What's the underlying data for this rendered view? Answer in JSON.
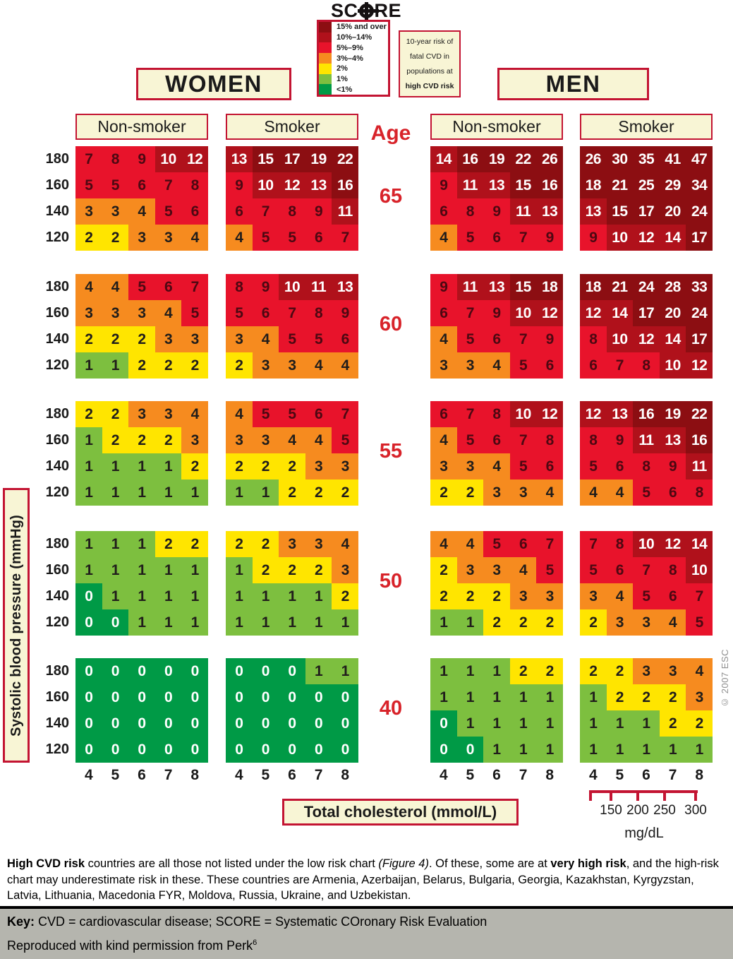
{
  "title": "SCORE",
  "title_parts": {
    "left": "SC",
    "right": "RE"
  },
  "legend_items": [
    {
      "label": "15% and over",
      "color": "#8c0e12"
    },
    {
      "label": "10%–14%",
      "color": "#b0111b"
    },
    {
      "label": "5%–9%",
      "color": "#e8132b"
    },
    {
      "label": "3%–4%",
      "color": "#f68b1f"
    },
    {
      "label": "2%",
      "color": "#ffe500"
    },
    {
      "label": "1%",
      "color": "#7dbf3f"
    },
    {
      "label": "<1%",
      "color": "#009a46"
    }
  ],
  "risk_box_lines": [
    "10-year risk of",
    "fatal CVD in",
    "populations at",
    "high CVD risk"
  ],
  "headers": {
    "women": "WOMEN",
    "men": "MEN",
    "age_label": "Age",
    "nonsmoker": "Non-smoker",
    "smoker": "Smoker"
  },
  "bp_axis_label": "Systolic blood pressure (mmHg)",
  "chol_box_label": "Total cholesterol (mmol/L)",
  "mgdl": {
    "ticks": [
      "150",
      "200",
      "250",
      "300"
    ],
    "unit": "mg/dL"
  },
  "copyright": "© 2007 ESC",
  "footnote_segments": [
    {
      "text": "High CVD risk",
      "bold": true
    },
    {
      "text": " countries are all those not listed under the low risk chart "
    },
    {
      "text": "(Figure 4)",
      "italic": true
    },
    {
      "text": ". Of these, some are at "
    },
    {
      "text": "very high risk",
      "bold": true
    },
    {
      "text": ", and the high-risk chart may underestimate risk in these. These countries are Armenia, Azerbaijan, Belarus, Bulgaria, Georgia, Kazakhstan, Kyrgyzstan, Latvia, Lithuania, Macedonia FYR, Moldova, Russia, Ukraine, and Uzbekistan."
    }
  ],
  "key_bar": {
    "key_label": "Key:",
    "key_text": " CVD = cardiovascular disease; SCORE = Systematic COronary Risk Evaluation",
    "reproduced_text": "Reproduced with kind permission from Perk",
    "reproduced_sup": "6"
  },
  "chart_data": {
    "type": "heatmap",
    "title": "SCORE",
    "subtitle": "10-year risk of fatal CVD in populations at high CVD risk",
    "legend_bins": [
      {
        "label": "15% and over",
        "min": 15,
        "color": "#8c0e12"
      },
      {
        "label": "10%–14%",
        "min": 10,
        "color": "#b0111b"
      },
      {
        "label": "5%–9%",
        "min": 5,
        "color": "#e8132b"
      },
      {
        "label": "3%–4%",
        "min": 3,
        "color": "#f68b1f"
      },
      {
        "label": "2%",
        "min": 2,
        "color": "#ffe500"
      },
      {
        "label": "1%",
        "min": 1,
        "color": "#7dbf3f"
      },
      {
        "label": "<1%",
        "min": 0,
        "color": "#009a46"
      }
    ],
    "x_axis": {
      "label": "Total cholesterol (mmol/L)",
      "ticks": [
        4,
        5,
        6,
        7,
        8
      ],
      "secondary": {
        "unit": "mg/dL",
        "ticks": [
          150,
          200,
          250,
          300
        ]
      }
    },
    "y_axis": {
      "label": "Systolic blood pressure (mmHg)",
      "ticks": [
        180,
        160,
        140,
        120
      ]
    },
    "ages": [
      65,
      60,
      55,
      50,
      40
    ],
    "grids": {
      "women": {
        "nonsmoker": {
          "65": [
            [
              7,
              8,
              9,
              10,
              12
            ],
            [
              5,
              5,
              6,
              7,
              8
            ],
            [
              3,
              3,
              4,
              5,
              6
            ],
            [
              2,
              2,
              3,
              3,
              4
            ]
          ],
          "60": [
            [
              4,
              4,
              5,
              6,
              7
            ],
            [
              3,
              3,
              3,
              4,
              5
            ],
            [
              2,
              2,
              2,
              3,
              3
            ],
            [
              1,
              1,
              2,
              2,
              2
            ]
          ],
          "55": [
            [
              2,
              2,
              3,
              3,
              4
            ],
            [
              1,
              2,
              2,
              2,
              3
            ],
            [
              1,
              1,
              1,
              1,
              2
            ],
            [
              1,
              1,
              1,
              1,
              1
            ]
          ],
          "50": [
            [
              1,
              1,
              1,
              2,
              2
            ],
            [
              1,
              1,
              1,
              1,
              1
            ],
            [
              0,
              1,
              1,
              1,
              1
            ],
            [
              0,
              0,
              1,
              1,
              1
            ]
          ],
          "40": [
            [
              0,
              0,
              0,
              0,
              0
            ],
            [
              0,
              0,
              0,
              0,
              0
            ],
            [
              0,
              0,
              0,
              0,
              0
            ],
            [
              0,
              0,
              0,
              0,
              0
            ]
          ]
        },
        "smoker": {
          "65": [
            [
              13,
              15,
              17,
              19,
              22
            ],
            [
              9,
              10,
              12,
              13,
              16
            ],
            [
              6,
              7,
              8,
              9,
              11
            ],
            [
              4,
              5,
              5,
              6,
              7
            ]
          ],
          "60": [
            [
              8,
              9,
              10,
              11,
              13
            ],
            [
              5,
              6,
              7,
              8,
              9
            ],
            [
              3,
              4,
              5,
              5,
              6
            ],
            [
              2,
              3,
              3,
              4,
              4
            ]
          ],
          "55": [
            [
              4,
              5,
              5,
              6,
              7
            ],
            [
              3,
              3,
              4,
              4,
              5
            ],
            [
              2,
              2,
              2,
              3,
              3
            ],
            [
              1,
              1,
              2,
              2,
              2
            ]
          ],
          "50": [
            [
              2,
              2,
              3,
              3,
              4
            ],
            [
              1,
              2,
              2,
              2,
              3
            ],
            [
              1,
              1,
              1,
              1,
              2
            ],
            [
              1,
              1,
              1,
              1,
              1
            ]
          ],
          "40": [
            [
              0,
              0,
              0,
              1,
              1
            ],
            [
              0,
              0,
              0,
              0,
              0
            ],
            [
              0,
              0,
              0,
              0,
              0
            ],
            [
              0,
              0,
              0,
              0,
              0
            ]
          ]
        }
      },
      "men": {
        "nonsmoker": {
          "65": [
            [
              14,
              16,
              19,
              22,
              26
            ],
            [
              9,
              11,
              13,
              15,
              16
            ],
            [
              6,
              8,
              9,
              11,
              13
            ],
            [
              4,
              5,
              6,
              7,
              9
            ]
          ],
          "60": [
            [
              9,
              11,
              13,
              15,
              18
            ],
            [
              6,
              7,
              9,
              10,
              12
            ],
            [
              4,
              5,
              6,
              7,
              9
            ],
            [
              3,
              3,
              4,
              5,
              6
            ]
          ],
          "55": [
            [
              6,
              7,
              8,
              10,
              12
            ],
            [
              4,
              5,
              6,
              7,
              8
            ],
            [
              3,
              3,
              4,
              5,
              6
            ],
            [
              2,
              2,
              3,
              3,
              4
            ]
          ],
          "50": [
            [
              4,
              4,
              5,
              6,
              7
            ],
            [
              2,
              3,
              3,
              4,
              5
            ],
            [
              2,
              2,
              2,
              3,
              3
            ],
            [
              1,
              1,
              2,
              2,
              2
            ]
          ],
          "40": [
            [
              1,
              1,
              1,
              2,
              2
            ],
            [
              1,
              1,
              1,
              1,
              1
            ],
            [
              0,
              1,
              1,
              1,
              1
            ],
            [
              0,
              0,
              1,
              1,
              1
            ]
          ]
        },
        "smoker": {
          "65": [
            [
              26,
              30,
              35,
              41,
              47
            ],
            [
              18,
              21,
              25,
              29,
              34
            ],
            [
              13,
              15,
              17,
              20,
              24
            ],
            [
              9,
              10,
              12,
              14,
              17
            ]
          ],
          "60": [
            [
              18,
              21,
              24,
              28,
              33
            ],
            [
              12,
              14,
              17,
              20,
              24
            ],
            [
              8,
              10,
              12,
              14,
              17
            ],
            [
              6,
              7,
              8,
              10,
              12
            ]
          ],
          "55": [
            [
              12,
              13,
              16,
              19,
              22
            ],
            [
              8,
              9,
              11,
              13,
              16
            ],
            [
              5,
              6,
              8,
              9,
              11
            ],
            [
              4,
              4,
              5,
              6,
              8
            ]
          ],
          "50": [
            [
              7,
              8,
              10,
              12,
              14
            ],
            [
              5,
              6,
              7,
              8,
              10
            ],
            [
              3,
              4,
              5,
              6,
              7
            ],
            [
              2,
              3,
              3,
              4,
              5
            ]
          ],
          "40": [
            [
              2,
              2,
              3,
              3,
              4
            ],
            [
              1,
              2,
              2,
              2,
              3
            ],
            [
              1,
              1,
              1,
              2,
              2
            ],
            [
              1,
              1,
              1,
              1,
              1
            ]
          ]
        }
      }
    }
  }
}
